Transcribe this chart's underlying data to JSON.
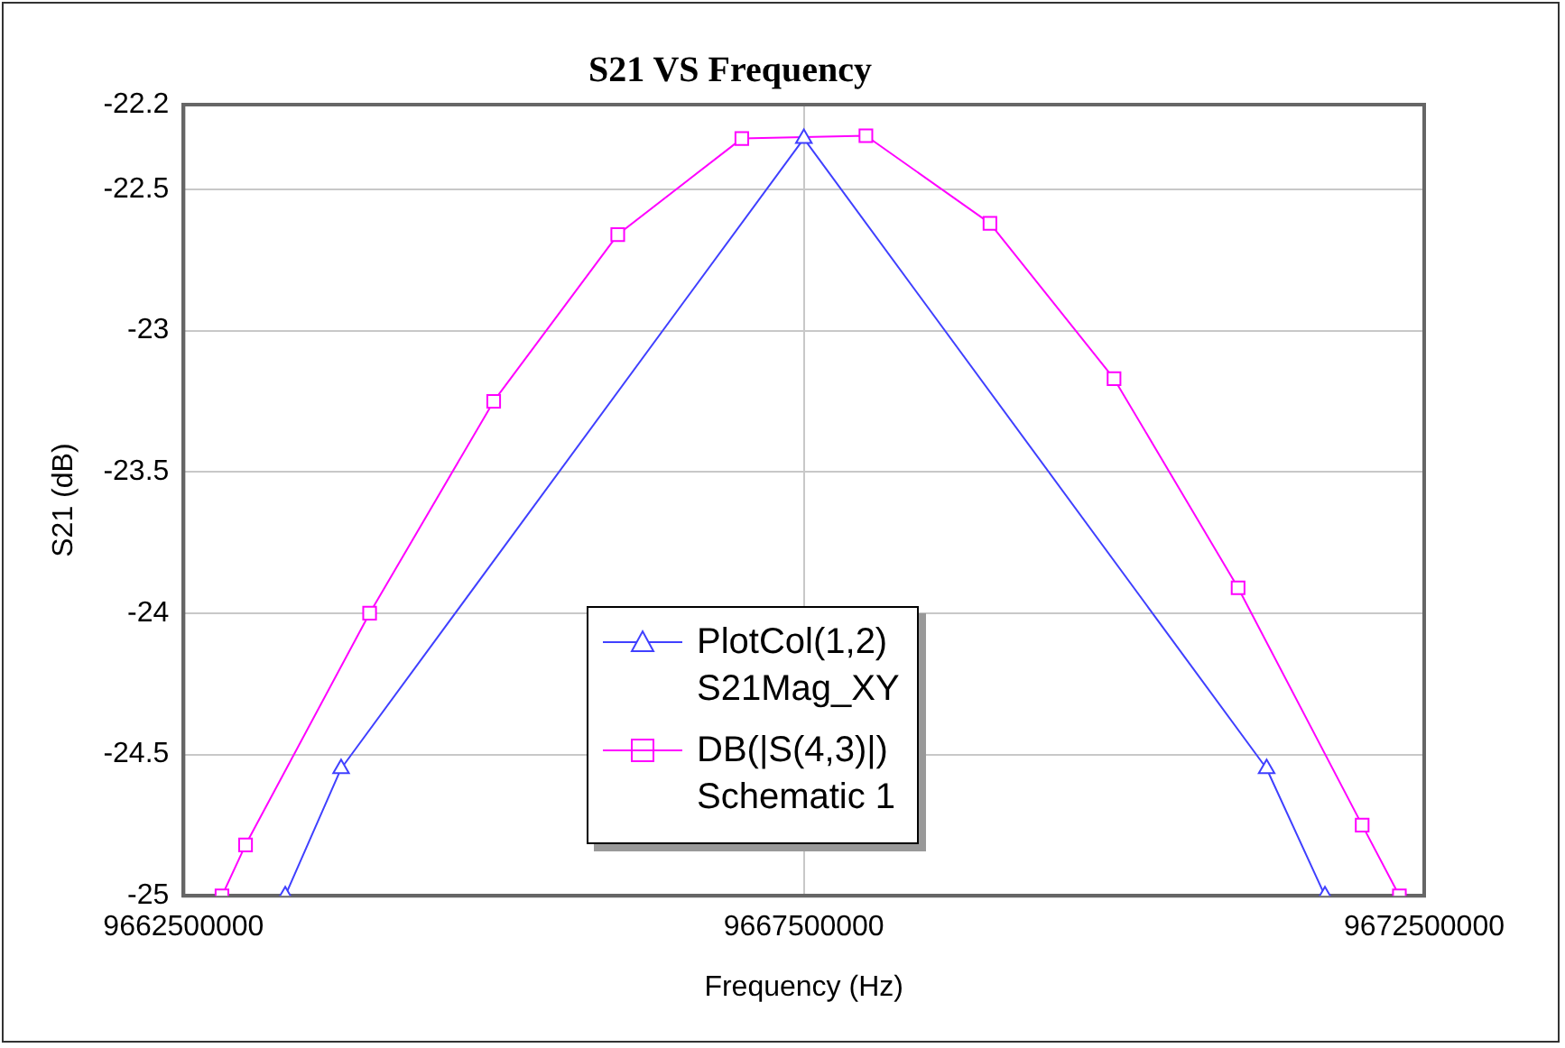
{
  "chart_data": {
    "type": "line",
    "title": "S21 VS Frequency",
    "xlabel": "Frequency (Hz)",
    "ylabel": "S21 (dB)",
    "xlim": [
      9662500000,
      9672500000
    ],
    "xticks": [
      9662500000,
      9667500000,
      9672500000
    ],
    "ylim": [
      -25,
      -22.2
    ],
    "yticks": [
      -25,
      -24.5,
      -24,
      -23.5,
      -23,
      -22.5,
      -22.2
    ],
    "grid": true,
    "legend": "bottom",
    "line_style": "solid",
    "series": [
      {
        "name": "PlotCol(1,2)\nS21Mag_XY",
        "color": "#4040ff",
        "marker": "triangle",
        "x": [
          9663320000,
          9663770000,
          9667500000,
          9671230000,
          9671700000
        ],
        "values": [
          -25,
          -24.55,
          -22.32,
          -24.55,
          -25
        ]
      },
      {
        "name": "DB(|S(4,3)|)\nSchematic 1",
        "color": "#ff00ff",
        "marker": "square",
        "x": [
          9662810000,
          9663000000,
          9664000000,
          9665000000,
          9666000000,
          9667000000,
          9668000000,
          9669000000,
          9670000000,
          9671000000,
          9672000000,
          9672300000
        ],
        "values": [
          -25,
          -24.82,
          -24.0,
          -23.25,
          -22.66,
          -22.32,
          -22.31,
          -22.62,
          -23.17,
          -23.91,
          -24.75,
          -25
        ]
      }
    ]
  }
}
